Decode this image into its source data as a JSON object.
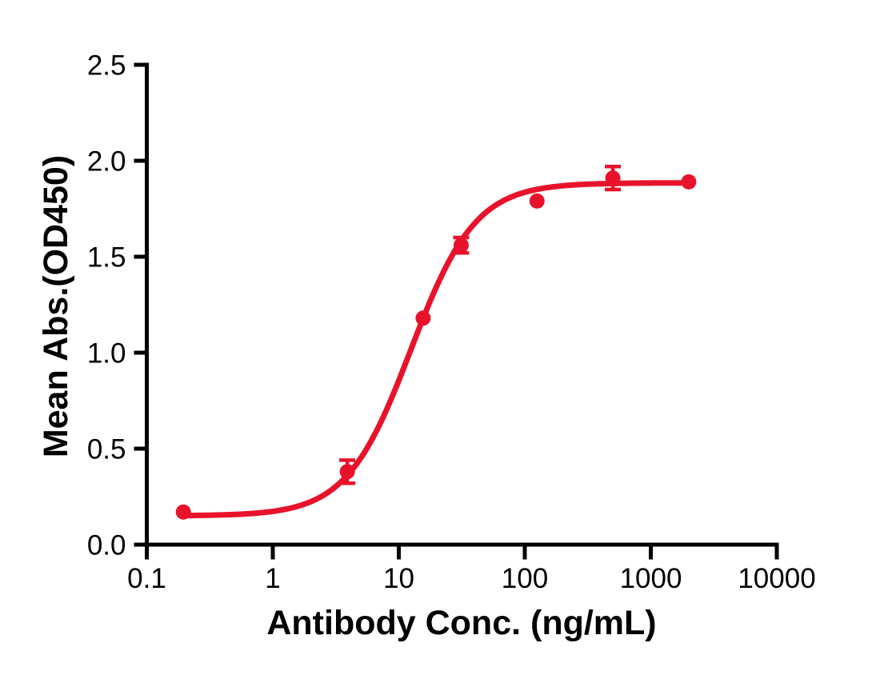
{
  "chart_data": {
    "type": "scatter",
    "xlabel": "Antibody Conc. (ng/mL)",
    "ylabel": "Mean Abs.(OD450)",
    "x_scale": "log10",
    "xlim": [
      0.1,
      10000
    ],
    "ylim": [
      0.0,
      2.5
    ],
    "x_ticks": [
      0.1,
      1,
      10,
      100,
      1000,
      10000
    ],
    "x_tick_labels": [
      "0.1",
      "1",
      "10",
      "100",
      "1000",
      "10000"
    ],
    "y_ticks": [
      0.0,
      0.5,
      1.0,
      1.5,
      2.0,
      2.5
    ],
    "y_tick_labels": [
      "0.0",
      "0.5",
      "1.0",
      "1.5",
      "2.0",
      "2.5"
    ],
    "grid": false,
    "legend": null,
    "colors": {
      "series": "#E8132B",
      "axis": "#000000",
      "background": "#FFFFFF"
    },
    "series": [
      {
        "marker": "circle",
        "color": "#E8132B",
        "points": [
          {
            "x": 0.195,
            "y": 0.17,
            "err": 0
          },
          {
            "x": 3.9,
            "y": 0.38,
            "err": 0.06
          },
          {
            "x": 15.6,
            "y": 1.18,
            "err": 0
          },
          {
            "x": 31.25,
            "y": 1.56,
            "err": 0.04
          },
          {
            "x": 125,
            "y": 1.79,
            "err": 0
          },
          {
            "x": 500,
            "y": 1.91,
            "err": 0.06
          },
          {
            "x": 2000,
            "y": 1.89,
            "err": 0
          }
        ],
        "fit": {
          "model": "4PL",
          "bottom": 0.15,
          "top": 1.885,
          "ec50": 12.5,
          "hill": 1.7,
          "x_range": [
            0.195,
            2000
          ]
        }
      }
    ]
  }
}
